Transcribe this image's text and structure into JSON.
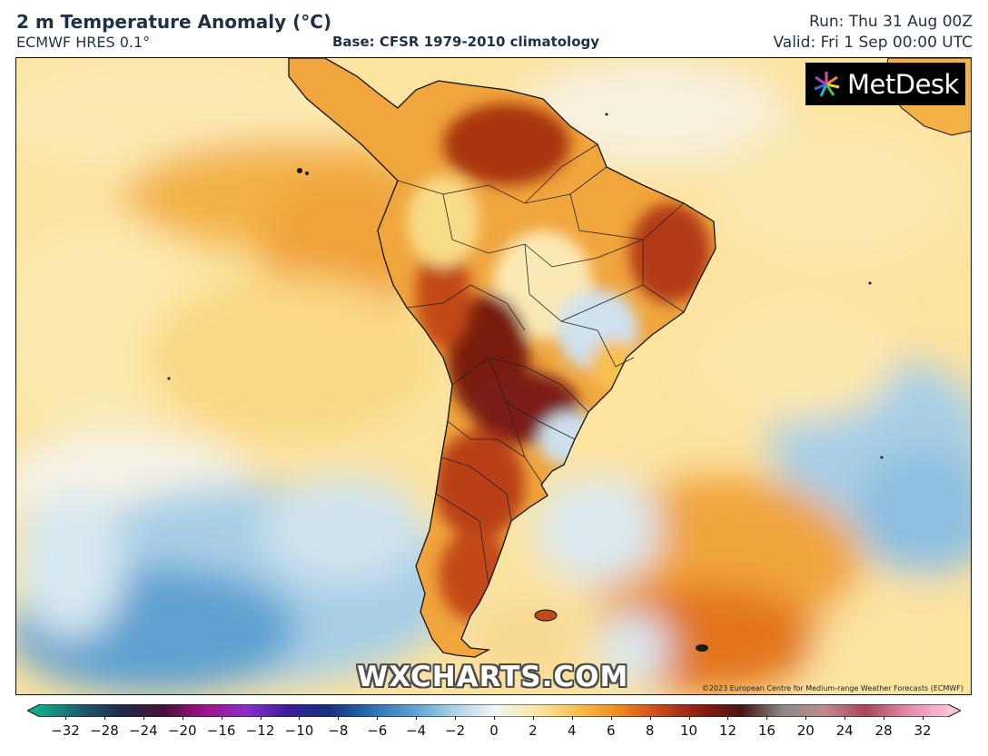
{
  "header": {
    "title": "2 m Temperature Anomaly (°C)",
    "model": "ECMWF HRES 0.1°",
    "base": "Base: CFSR 1979-2010 climatology",
    "run": "Run: Thu 31 Aug 00Z",
    "valid": "Valid: Fri 1 Sep 00:00 UTC"
  },
  "map": {
    "brand_logo_text": "MetDesk",
    "watermark": "WXCHARTS.COM",
    "copyright": "©2023 European Centre for Medium-range Weather Forecasts (ECMWF)"
  },
  "colorbar": {
    "ticks": [
      "−32",
      "−28",
      "−24",
      "−20",
      "−16",
      "−12",
      "−10",
      "−8",
      "−6",
      "−4",
      "−2",
      "0",
      "2",
      "4",
      "6",
      "8",
      "10",
      "12",
      "16",
      "20",
      "24",
      "28",
      "32"
    ],
    "colors": [
      "#11a98a",
      "#1d5a6e",
      "#1e2a4a",
      "#4a0f3a",
      "#a0148c",
      "#8a2ec8",
      "#3a1e9a",
      "#16307a",
      "#2a6fb0",
      "#5a9ed0",
      "#a9d0e6",
      "#f2f5f6",
      "#fbe7a8",
      "#f6c04e",
      "#ee8b1f",
      "#c8481c",
      "#8a1e14",
      "#4a1414",
      "#8a8a8a",
      "#c08a8a",
      "#a8485a",
      "#e089a8",
      "#f8c2d8"
    ]
  },
  "colors": {
    "ocean_warm": "#fbe29a",
    "ocean_cool": "#b8d8ec",
    "land_hot": "#a0340f",
    "border": "#111111"
  }
}
